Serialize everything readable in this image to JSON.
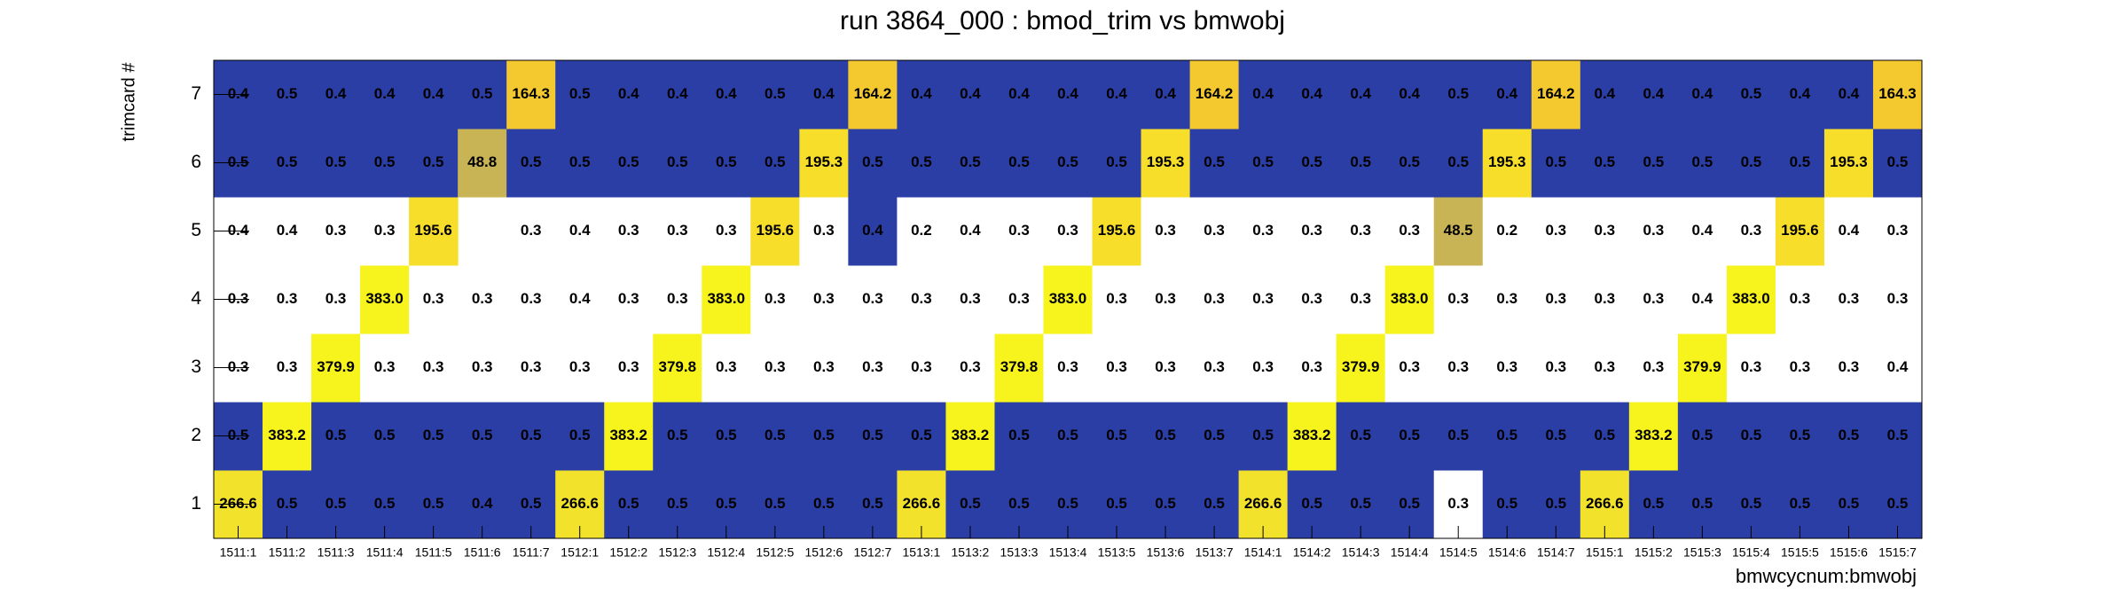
{
  "chart_data": {
    "type": "heatmap",
    "title": "run 3864_000 : bmod_trim vs bmwobj",
    "x_label": "bmwcycnum:bmwobj",
    "y_label": "trimcard #",
    "x_categories": [
      "1511:1",
      "1511:2",
      "1511:3",
      "1511:4",
      "1511:5",
      "1511:6",
      "1511:7",
      "1512:1",
      "1512:2",
      "1512:3",
      "1512:4",
      "1512:5",
      "1512:6",
      "1512:7",
      "1513:1",
      "1513:2",
      "1513:3",
      "1513:4",
      "1513:5",
      "1513:6",
      "1513:7",
      "1514:1",
      "1514:2",
      "1514:3",
      "1514:4",
      "1514:5",
      "1514:6",
      "1514:7",
      "1515:1",
      "1515:2",
      "1515:3",
      "1515:4",
      "1515:5",
      "1515:6",
      "1515:7"
    ],
    "y_categories": [
      "1",
      "2",
      "3",
      "4",
      "5",
      "6",
      "7"
    ],
    "values": [
      [
        266.6,
        0.5,
        0.5,
        0.5,
        0.5,
        0.4,
        0.5,
        266.6,
        0.5,
        0.5,
        0.5,
        0.5,
        0.5,
        0.5,
        266.6,
        0.5,
        0.5,
        0.5,
        0.5,
        0.5,
        0.5,
        266.6,
        0.5,
        0.5,
        0.5,
        0.3,
        0.5,
        0.5,
        266.6,
        0.5,
        0.5,
        0.5,
        0.5,
        0.5,
        0.5
      ],
      [
        0.5,
        383.2,
        0.5,
        0.5,
        0.5,
        0.5,
        0.5,
        0.5,
        383.2,
        0.5,
        0.5,
        0.5,
        0.5,
        0.5,
        0.5,
        383.2,
        0.5,
        0.5,
        0.5,
        0.5,
        0.5,
        0.5,
        383.2,
        0.5,
        0.5,
        0.5,
        0.5,
        0.5,
        0.5,
        383.2,
        0.5,
        0.5,
        0.5,
        0.5,
        0.5
      ],
      [
        0.3,
        0.3,
        379.9,
        0.3,
        0.3,
        0.3,
        0.3,
        0.3,
        0.3,
        379.8,
        0.3,
        0.3,
        0.3,
        0.3,
        0.3,
        0.3,
        379.8,
        0.3,
        0.3,
        0.3,
        0.3,
        0.3,
        0.3,
        379.9,
        0.3,
        0.3,
        0.3,
        0.3,
        0.3,
        0.3,
        379.9,
        0.3,
        0.3,
        0.3,
        0.4
      ],
      [
        0.3,
        0.3,
        0.3,
        383,
        0.3,
        0.3,
        0.3,
        0.4,
        0.3,
        0.3,
        383,
        0.3,
        0.3,
        0.3,
        0.3,
        0.3,
        0.3,
        383,
        0.3,
        0.3,
        0.3,
        0.3,
        0.3,
        0.3,
        383,
        0.3,
        0.3,
        0.3,
        0.3,
        0.3,
        0.4,
        383,
        0.3,
        0.3,
        0.3
      ],
      [
        0.4,
        0.4,
        0.3,
        0.3,
        195.6,
        null,
        0.3,
        0.4,
        0.3,
        0.3,
        0.3,
        195.6,
        0.3,
        0.4,
        0.2,
        0.4,
        0.3,
        0.3,
        195.6,
        0.3,
        0.3,
        0.3,
        0.3,
        0.3,
        0.3,
        48.5,
        0.2,
        0.3,
        0.3,
        0.3,
        0.4,
        0.3,
        195.6,
        0.4,
        0.3
      ],
      [
        0.5,
        0.5,
        0.5,
        0.5,
        0.5,
        48.8,
        0.5,
        0.5,
        0.5,
        0.5,
        0.5,
        0.5,
        195.3,
        0.5,
        0.5,
        0.5,
        0.5,
        0.5,
        0.5,
        195.3,
        0.5,
        0.5,
        0.5,
        0.5,
        0.5,
        0.5,
        195.3,
        0.5,
        0.5,
        0.5,
        0.5,
        0.5,
        0.5,
        195.3,
        0.5
      ],
      [
        0.4,
        0.5,
        0.4,
        0.4,
        0.4,
        0.5,
        164.3,
        0.5,
        0.4,
        0.4,
        0.4,
        0.5,
        0.4,
        164.2,
        0.4,
        0.4,
        0.4,
        0.4,
        0.4,
        0.4,
        164.2,
        0.4,
        0.4,
        0.4,
        0.4,
        0.5,
        0.4,
        164.2,
        0.4,
        0.4,
        0.4,
        0.5,
        0.4,
        0.4,
        164.3
      ]
    ],
    "value_labels": [
      [
        "266.6",
        "0.5",
        "0.5",
        "0.5",
        "0.5",
        "0.4",
        "0.5",
        "266.6",
        "0.5",
        "0.5",
        "0.5",
        "0.5",
        "0.5",
        "0.5",
        "266.6",
        "0.5",
        "0.5",
        "0.5",
        "0.5",
        "0.5",
        "0.5",
        "266.6",
        "0.5",
        "0.5",
        "0.5",
        "0.3",
        "0.5",
        "0.5",
        "266.6",
        "0.5",
        "0.5",
        "0.5",
        "0.5",
        "0.5",
        "0.5"
      ],
      [
        "0.5",
        "383.2",
        "0.5",
        "0.5",
        "0.5",
        "0.5",
        "0.5",
        "0.5",
        "383.2",
        "0.5",
        "0.5",
        "0.5",
        "0.5",
        "0.5",
        "0.5",
        "383.2",
        "0.5",
        "0.5",
        "0.5",
        "0.5",
        "0.5",
        "0.5",
        "383.2",
        "0.5",
        "0.5",
        "0.5",
        "0.5",
        "0.5",
        "0.5",
        "383.2",
        "0.5",
        "0.5",
        "0.5",
        "0.5",
        "0.5"
      ],
      [
        "0.3",
        "0.3",
        "379.9",
        "0.3",
        "0.3",
        "0.3",
        "0.3",
        "0.3",
        "0.3",
        "379.8",
        "0.3",
        "0.3",
        "0.3",
        "0.3",
        "0.3",
        "0.3",
        "379.8",
        "0.3",
        "0.3",
        "0.3",
        "0.3",
        "0.3",
        "0.3",
        "379.9",
        "0.3",
        "0.3",
        "0.3",
        "0.3",
        "0.3",
        "0.3",
        "379.9",
        "0.3",
        "0.3",
        "0.3",
        "0.4"
      ],
      [
        "0.3",
        "0.3",
        "0.3",
        "383.0",
        "0.3",
        "0.3",
        "0.3",
        "0.4",
        "0.3",
        "0.3",
        "383.0",
        "0.3",
        "0.3",
        "0.3",
        "0.3",
        "0.3",
        "0.3",
        "383.0",
        "0.3",
        "0.3",
        "0.3",
        "0.3",
        "0.3",
        "0.3",
        "383.0",
        "0.3",
        "0.3",
        "0.3",
        "0.3",
        "0.3",
        "0.4",
        "383.0",
        "0.3",
        "0.3",
        "0.3"
      ],
      [
        "0.4",
        "0.4",
        "0.3",
        "0.3",
        "195.6",
        null,
        "0.3",
        "0.4",
        "0.3",
        "0.3",
        "0.3",
        "195.6",
        "0.3",
        "0.4",
        "0.2",
        "0.4",
        "0.3",
        "0.3",
        "195.6",
        "0.3",
        "0.3",
        "0.3",
        "0.3",
        "0.3",
        "0.3",
        "48.5",
        "0.2",
        "0.3",
        "0.3",
        "0.3",
        "0.4",
        "0.3",
        "195.6",
        "0.4",
        "0.3"
      ],
      [
        "0.5",
        "0.5",
        "0.5",
        "0.5",
        "0.5",
        "48.8",
        "0.5",
        "0.5",
        "0.5",
        "0.5",
        "0.5",
        "0.5",
        "195.3",
        "0.5",
        "0.5",
        "0.5",
        "0.5",
        "0.5",
        "0.5",
        "195.3",
        "0.5",
        "0.5",
        "0.5",
        "0.5",
        "0.5",
        "0.5",
        "195.3",
        "0.5",
        "0.5",
        "0.5",
        "0.5",
        "0.5",
        "0.5",
        "195.3",
        "0.5"
      ],
      [
        "0.4",
        "0.5",
        "0.4",
        "0.4",
        "0.4",
        "0.5",
        "164.3",
        "0.5",
        "0.4",
        "0.4",
        "0.4",
        "0.5",
        "0.4",
        "164.2",
        "0.4",
        "0.4",
        "0.4",
        "0.4",
        "0.4",
        "0.4",
        "164.2",
        "0.4",
        "0.4",
        "0.4",
        "0.4",
        "0.5",
        "0.4",
        "164.2",
        "0.4",
        "0.4",
        "0.4",
        "0.5",
        "0.4",
        "0.4",
        "164.3"
      ]
    ],
    "colors": [
      [
        "#f3e22c",
        "#2a3ea5",
        "#2a3ea5",
        "#2a3ea5",
        "#2a3ea5",
        "#2a3ea5",
        "#2a3ea5",
        "#f3e22c",
        "#2a3ea5",
        "#2a3ea5",
        "#2a3ea5",
        "#2a3ea5",
        "#2a3ea5",
        "#2a3ea5",
        "#f3e22c",
        "#2a3ea5",
        "#2a3ea5",
        "#2a3ea5",
        "#2a3ea5",
        "#2a3ea5",
        "#2a3ea5",
        "#f3e22c",
        "#2a3ea5",
        "#2a3ea5",
        "#2a3ea5",
        "#ffffff",
        "#2a3ea5",
        "#2a3ea5",
        "#f3e22c",
        "#2a3ea5",
        "#2a3ea5",
        "#2a3ea5",
        "#2a3ea5",
        "#2a3ea5",
        "#2a3ea5"
      ],
      [
        "#2a3ea5",
        "#f7f31d",
        "#2a3ea5",
        "#2a3ea5",
        "#2a3ea5",
        "#2a3ea5",
        "#2a3ea5",
        "#2a3ea5",
        "#f7f31d",
        "#2a3ea5",
        "#2a3ea5",
        "#2a3ea5",
        "#2a3ea5",
        "#2a3ea5",
        "#2a3ea5",
        "#f7f31d",
        "#2a3ea5",
        "#2a3ea5",
        "#2a3ea5",
        "#2a3ea5",
        "#2a3ea5",
        "#2a3ea5",
        "#f7f31d",
        "#2a3ea5",
        "#2a3ea5",
        "#2a3ea5",
        "#2a3ea5",
        "#2a3ea5",
        "#2a3ea5",
        "#f7f31d",
        "#2a3ea5",
        "#2a3ea5",
        "#2a3ea5",
        "#2a3ea5",
        "#2a3ea5"
      ],
      [
        "#ffffff",
        "#ffffff",
        "#f7f31d",
        "#ffffff",
        "#ffffff",
        "#ffffff",
        "#ffffff",
        "#ffffff",
        "#ffffff",
        "#f7f31d",
        "#ffffff",
        "#ffffff",
        "#ffffff",
        "#ffffff",
        "#ffffff",
        "#ffffff",
        "#f7f31d",
        "#ffffff",
        "#ffffff",
        "#ffffff",
        "#ffffff",
        "#ffffff",
        "#ffffff",
        "#f7f31d",
        "#ffffff",
        "#ffffff",
        "#ffffff",
        "#ffffff",
        "#ffffff",
        "#ffffff",
        "#f7f31d",
        "#ffffff",
        "#ffffff",
        "#ffffff",
        "#ffffff"
      ],
      [
        "#ffffff",
        "#ffffff",
        "#ffffff",
        "#f7f31d",
        "#ffffff",
        "#ffffff",
        "#ffffff",
        "#ffffff",
        "#ffffff",
        "#ffffff",
        "#f7f31d",
        "#ffffff",
        "#ffffff",
        "#ffffff",
        "#ffffff",
        "#ffffff",
        "#ffffff",
        "#f7f31d",
        "#ffffff",
        "#ffffff",
        "#ffffff",
        "#ffffff",
        "#ffffff",
        "#ffffff",
        "#f7f31d",
        "#ffffff",
        "#ffffff",
        "#ffffff",
        "#ffffff",
        "#ffffff",
        "#ffffff",
        "#f7f31d",
        "#ffffff",
        "#ffffff",
        "#ffffff"
      ],
      [
        "#ffffff",
        "#ffffff",
        "#ffffff",
        "#ffffff",
        "#f7de2b",
        "#ffffff",
        "#ffffff",
        "#ffffff",
        "#ffffff",
        "#ffffff",
        "#ffffff",
        "#f7de2b",
        "#ffffff",
        "#2a3ea5",
        "#ffffff",
        "#ffffff",
        "#ffffff",
        "#ffffff",
        "#f7de2b",
        "#ffffff",
        "#ffffff",
        "#ffffff",
        "#ffffff",
        "#ffffff",
        "#ffffff",
        "#c8b355",
        "#ffffff",
        "#ffffff",
        "#ffffff",
        "#ffffff",
        "#ffffff",
        "#ffffff",
        "#f7de2b",
        "#ffffff",
        "#ffffff"
      ],
      [
        "#2a3ea5",
        "#2a3ea5",
        "#2a3ea5",
        "#2a3ea5",
        "#2a3ea5",
        "#c8b355",
        "#2a3ea5",
        "#2a3ea5",
        "#2a3ea5",
        "#2a3ea5",
        "#2a3ea5",
        "#2a3ea5",
        "#f7de2b",
        "#2a3ea5",
        "#2a3ea5",
        "#2a3ea5",
        "#2a3ea5",
        "#2a3ea5",
        "#2a3ea5",
        "#f7de2b",
        "#2a3ea5",
        "#2a3ea5",
        "#2a3ea5",
        "#2a3ea5",
        "#2a3ea5",
        "#2a3ea5",
        "#f7de2b",
        "#2a3ea5",
        "#2a3ea5",
        "#2a3ea5",
        "#2a3ea5",
        "#2a3ea5",
        "#2a3ea5",
        "#f7de2b",
        "#2a3ea5"
      ],
      [
        "#2a3ea5",
        "#2a3ea5",
        "#2a3ea5",
        "#2a3ea5",
        "#2a3ea5",
        "#2a3ea5",
        "#f4c92f",
        "#2a3ea5",
        "#2a3ea5",
        "#2a3ea5",
        "#2a3ea5",
        "#2a3ea5",
        "#2a3ea5",
        "#f4c92f",
        "#2a3ea5",
        "#2a3ea5",
        "#2a3ea5",
        "#2a3ea5",
        "#2a3ea5",
        "#2a3ea5",
        "#f4c92f",
        "#2a3ea5",
        "#2a3ea5",
        "#2a3ea5",
        "#2a3ea5",
        "#2a3ea5",
        "#2a3ea5",
        "#f4c92f",
        "#2a3ea5",
        "#2a3ea5",
        "#2a3ea5",
        "#2a3ea5",
        "#2a3ea5",
        "#2a3ea5",
        "#f4c92f"
      ]
    ]
  }
}
